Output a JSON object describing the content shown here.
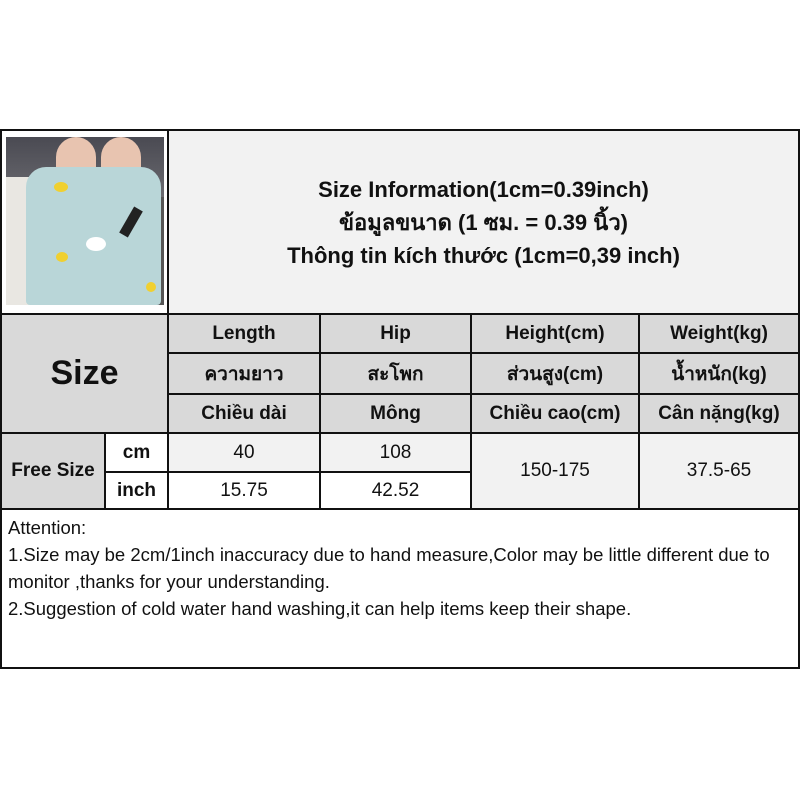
{
  "title_lines": [
    "Size Information(1cm=0.39inch)",
    "ข้อมูลขนาด (1 ซม. = 0.39 นิ้ว)",
    "Thông tin kích thước (1cm=0,39 inch)"
  ],
  "size_label": "Size",
  "columns": [
    {
      "en": "Length",
      "th": "ความยาว",
      "vi": "Chiều dài"
    },
    {
      "en": "Hip",
      "th": "สะโพก",
      "vi": "Mông"
    },
    {
      "en": "Height(cm)",
      "th": "ส่วนสูง(cm)",
      "vi": "Chiều cao(cm)"
    },
    {
      "en": "Weight(kg)",
      "th": "น้ำหนัก(kg)",
      "vi": "Cân nặng(kg)"
    }
  ],
  "rows": {
    "size_name": "Free Size",
    "cm": {
      "unit": "cm",
      "length": "40",
      "hip": "108"
    },
    "inch": {
      "unit": "inch",
      "length": "15.75",
      "hip": "42.52"
    },
    "height": "150-175",
    "weight": "37.5-65"
  },
  "attention": {
    "heading": "Attention:",
    "line1": "1.Size may be 2cm/1inch inaccuracy due to hand measure,Color may be little different due to monitor ,thanks for your understanding.",
    "line2": "2.Suggestion of cold water hand washing,it can help items keep their shape."
  },
  "colors": {
    "header_gray": "#d9d9d9",
    "light_gray": "#f2f2f2",
    "border": "#111111"
  }
}
